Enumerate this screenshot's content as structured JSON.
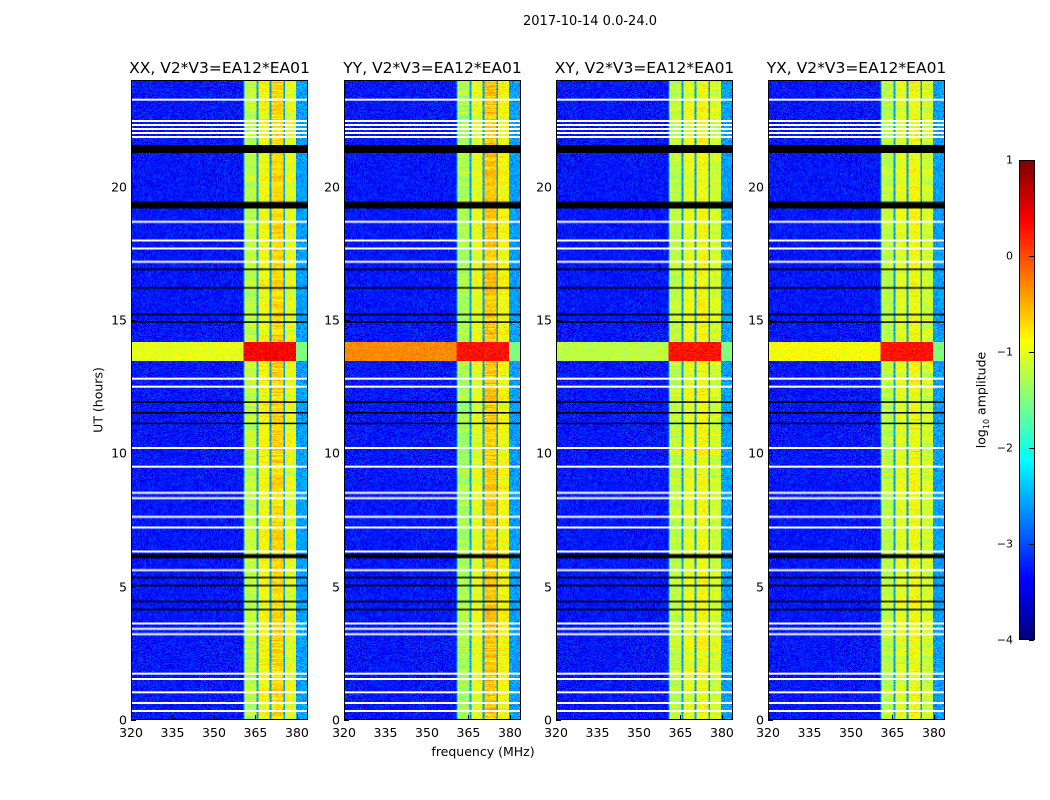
{
  "chart_data": {
    "type": "heatmap",
    "title": "2017-10-14 0.0-24.0",
    "xlabel": "frequency (MHz)",
    "ylabel": "UT (hours)",
    "xlim": [
      320,
      384
    ],
    "ylim": [
      0,
      24
    ],
    "xticks": [
      "320",
      "335",
      "350",
      "365",
      "380"
    ],
    "xtick_values": [
      320,
      335,
      350,
      365,
      380
    ],
    "yticks": [
      "0",
      "5",
      "10",
      "15",
      "20"
    ],
    "ytick_values": [
      0,
      5,
      10,
      15,
      20
    ],
    "panels": [
      {
        "title": "XX, V2*V3=EA12*EA01",
        "band_levels": [
          -1.2,
          -0.9,
          -0.7,
          -1.0
        ],
        "rfi_level": 0.4,
        "rfi_wide": -1.0
      },
      {
        "title": "YY, V2*V3=EA12*EA01",
        "band_levels": [
          -1.3,
          -1.0,
          -0.6,
          -0.9
        ],
        "rfi_level": 0.3,
        "rfi_wide": -0.3
      },
      {
        "title": "XY, V2*V3=EA12*EA01",
        "band_levels": [
          -1.2,
          -1.0,
          -0.9,
          -1.1
        ],
        "rfi_level": 0.3,
        "rfi_wide": -1.2
      },
      {
        "title": "YX, V2*V3=EA12*EA01",
        "band_levels": [
          -1.2,
          -1.0,
          -0.9,
          -1.1
        ],
        "rfi_level": 0.3,
        "rfi_wide": -0.9
      }
    ],
    "background_level": -3.3,
    "band_range_mhz": [
      360.5,
      380
    ],
    "flagged_white_hours": [
      23.3,
      22.5,
      22.35,
      22.2,
      22.05,
      21.9,
      18.7,
      18.0,
      17.7,
      17.2,
      12.8,
      12.5,
      10.2,
      9.5,
      8.5,
      8.3,
      7.6,
      7.2,
      6.3,
      5.6,
      3.6,
      3.4,
      3.2,
      1.7,
      1.5,
      1.0,
      0.6,
      0.3
    ],
    "flagged_black_hours": [
      [
        21.3,
        21.6
      ],
      [
        19.2,
        19.45
      ],
      [
        16.9,
        16.95
      ],
      [
        16.2,
        16.25
      ],
      [
        15.2,
        15.25
      ],
      [
        14.9,
        14.95
      ],
      [
        11.9,
        11.95
      ],
      [
        11.5,
        11.55
      ],
      [
        11.1,
        11.15
      ],
      [
        6.05,
        6.2
      ],
      [
        5.3,
        5.35
      ],
      [
        5.0,
        5.05
      ],
      [
        4.4,
        4.45
      ],
      [
        4.1,
        4.15
      ]
    ],
    "rfi_hours": [
      13.5,
      14.2
    ],
    "colorbar": {
      "label": "log10 amplitude",
      "label_main": "log",
      "label_sub": "10",
      "label_rest": " amplitude",
      "range": [
        -4,
        1
      ],
      "ticks": [
        "1",
        "0",
        "−1",
        "−2",
        "−3",
        "−4"
      ],
      "tick_values": [
        1,
        0,
        -1,
        -2,
        -3,
        -4
      ],
      "colormap": "jet"
    }
  }
}
